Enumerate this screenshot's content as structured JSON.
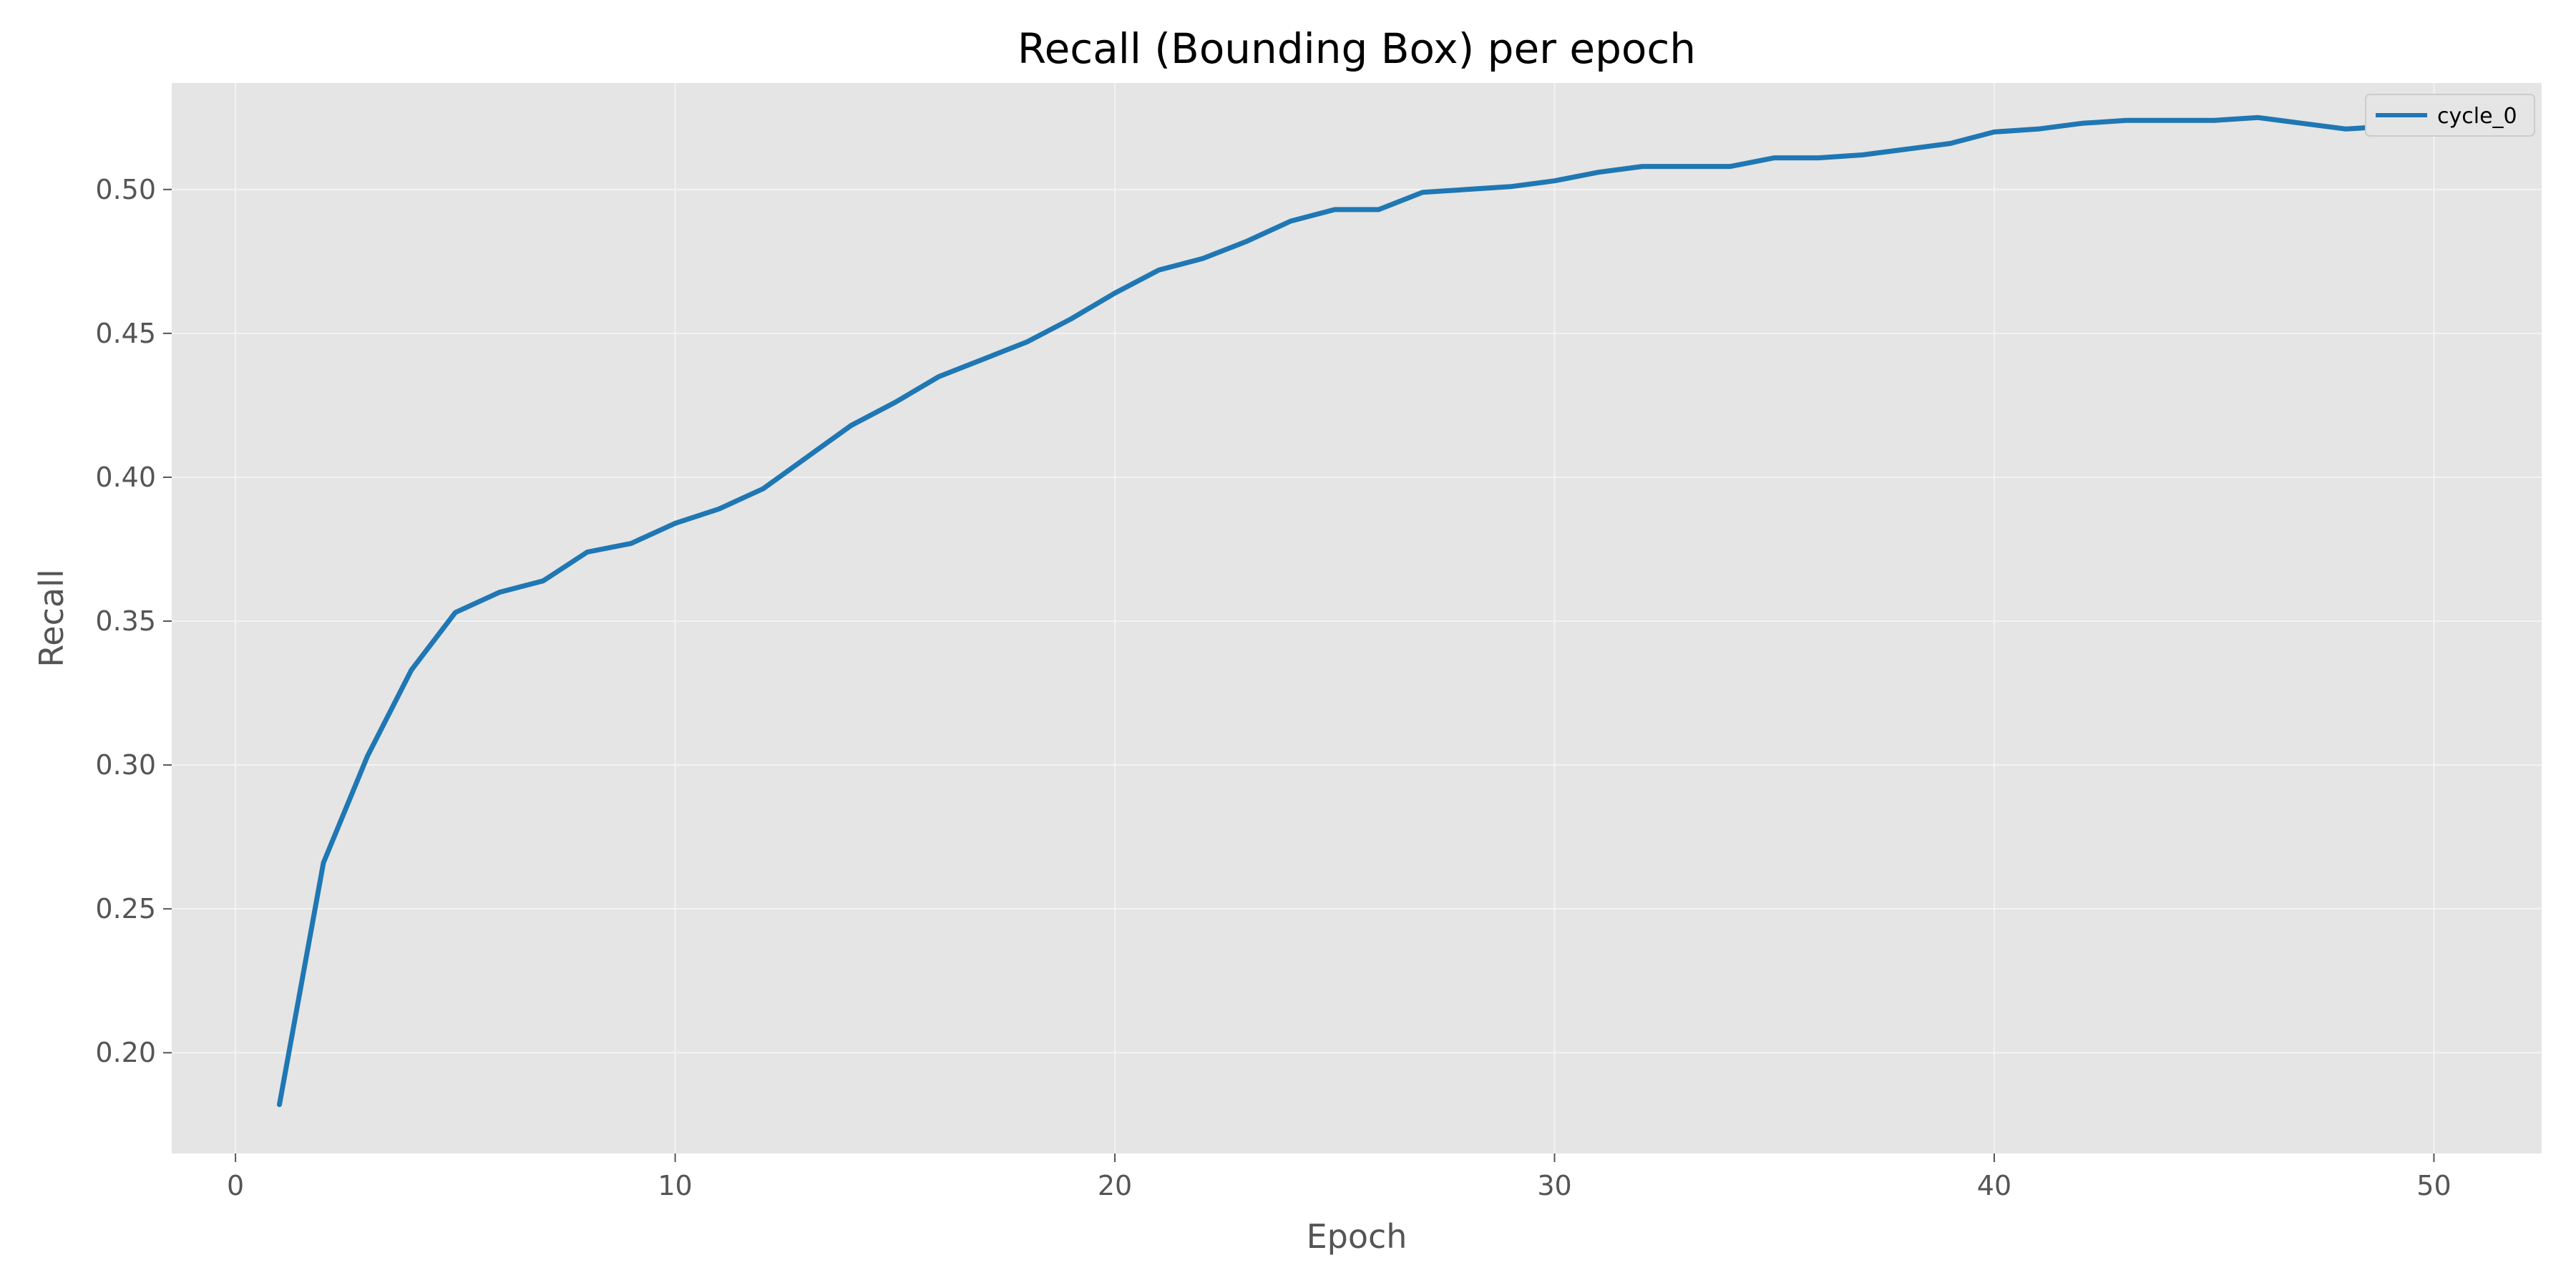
{
  "chart_data": {
    "type": "line",
    "title": "Recall (Bounding Box) per epoch",
    "xlabel": "Epoch",
    "ylabel": "Recall",
    "xlim": [
      -1.45,
      52.45
    ],
    "ylim": [
      0.165,
      0.537
    ],
    "xticks": [
      0,
      10,
      20,
      30,
      40,
      50
    ],
    "yticks": [
      0.2,
      0.25,
      0.3,
      0.35,
      0.4,
      0.45,
      0.5
    ],
    "ytick_labels": [
      "0.20",
      "0.25",
      "0.30",
      "0.35",
      "0.40",
      "0.45",
      "0.50"
    ],
    "grid": true,
    "legend_position": "top-right",
    "series": [
      {
        "name": "cycle_0",
        "color": "#1f77b4",
        "x": [
          1,
          2,
          3,
          4,
          5,
          6,
          7,
          8,
          9,
          10,
          11,
          12,
          13,
          14,
          15,
          16,
          17,
          18,
          19,
          20,
          21,
          22,
          23,
          24,
          25,
          26,
          27,
          28,
          29,
          30,
          31,
          32,
          33,
          34,
          35,
          36,
          37,
          38,
          39,
          40,
          41,
          42,
          43,
          44,
          45,
          46,
          47,
          48,
          49,
          50
        ],
        "y": [
          0.182,
          0.266,
          0.303,
          0.333,
          0.353,
          0.36,
          0.364,
          0.374,
          0.377,
          0.384,
          0.389,
          0.396,
          0.407,
          0.418,
          0.426,
          0.435,
          0.441,
          0.447,
          0.455,
          0.464,
          0.472,
          0.476,
          0.482,
          0.489,
          0.493,
          0.493,
          0.499,
          0.5,
          0.501,
          0.503,
          0.506,
          0.508,
          0.508,
          0.508,
          0.511,
          0.511,
          0.512,
          0.514,
          0.516,
          0.52,
          0.521,
          0.523,
          0.524,
          0.524,
          0.524,
          0.525,
          0.523,
          0.521,
          0.522,
          0.522
        ]
      }
    ]
  }
}
